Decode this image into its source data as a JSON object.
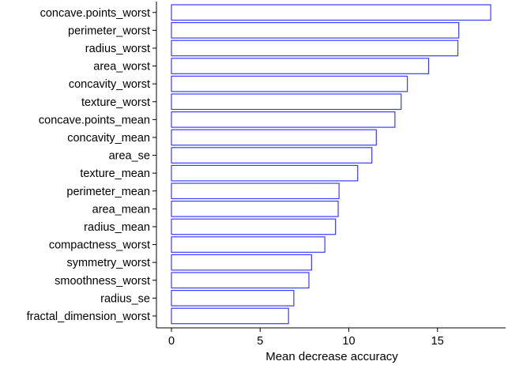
{
  "chart_data": {
    "type": "bar",
    "orientation": "horizontal",
    "categories": [
      "concave.points_worst",
      "perimeter_worst",
      "radius_worst",
      "area_worst",
      "concavity_worst",
      "texture_worst",
      "concave.points_mean",
      "concavity_mean",
      "area_se",
      "texture_mean",
      "perimeter_mean",
      "area_mean",
      "radius_mean",
      "compactness_worst",
      "symmetry_worst",
      "smoothness_worst",
      "radius_se",
      "fractal_dimension_worst"
    ],
    "values": [
      18.0,
      16.2,
      16.15,
      14.5,
      13.3,
      12.95,
      12.6,
      11.55,
      11.3,
      10.5,
      9.45,
      9.4,
      9.25,
      8.65,
      7.9,
      7.75,
      6.9,
      6.6
    ],
    "title": "",
    "xlabel": "Mean decrease accuracy",
    "ylabel": "",
    "xlim": [
      0,
      18.5
    ],
    "xticks": [
      0,
      5,
      10,
      15
    ],
    "xtick_labels": [
      "0",
      "5",
      "10",
      "15"
    ],
    "grid": false,
    "legend": "none",
    "bar_fill": "#ffffff",
    "bar_outline": "#3b3bff"
  }
}
